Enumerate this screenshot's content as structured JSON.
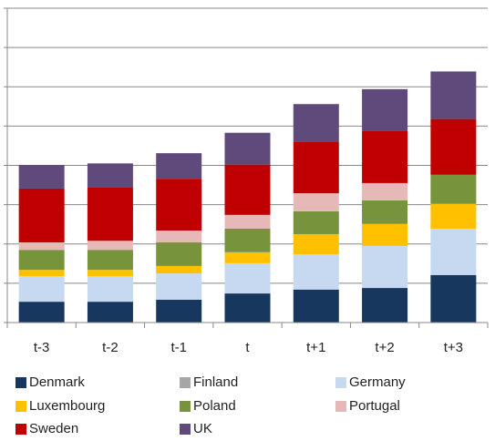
{
  "chart_data": {
    "type": "stacked_bar",
    "categories": [
      "t-3",
      "t-2",
      "t-1",
      "t",
      "t+1",
      "t+2",
      "t+3"
    ],
    "series": [
      {
        "name": "Denmark",
        "color": "#17375e",
        "values": [
          0.53,
          0.53,
          0.58,
          0.74,
          0.84,
          0.88,
          1.21
        ]
      },
      {
        "name": "Finland",
        "color": "#a6a6a6",
        "values": [
          0,
          0,
          0,
          0,
          0,
          0,
          0
        ]
      },
      {
        "name": "Germany",
        "color": "#c6d9f1",
        "values": [
          0.65,
          0.65,
          0.67,
          0.77,
          0.9,
          1.07,
          1.18
        ]
      },
      {
        "name": "Luxembourg",
        "color": "#ffc000",
        "values": [
          0.16,
          0.16,
          0.19,
          0.28,
          0.51,
          0.56,
          0.63
        ]
      },
      {
        "name": "Poland",
        "color": "#77933c",
        "values": [
          0.51,
          0.51,
          0.6,
          0.6,
          0.58,
          0.6,
          0.74
        ]
      },
      {
        "name": "Portugal",
        "color": "#e6b9b8",
        "values": [
          0.19,
          0.23,
          0.3,
          0.35,
          0.46,
          0.44,
          0
        ]
      },
      {
        "name": "Sweden",
        "color": "#c00000",
        "values": [
          1.37,
          1.37,
          1.32,
          1.28,
          1.32,
          1.32,
          1.42
        ]
      },
      {
        "name": "UK",
        "color": "#604a7b",
        "values": [
          0.6,
          0.6,
          0.65,
          0.81,
          0.95,
          1.07,
          1.21
        ]
      }
    ],
    "ylim": [
      0,
      8
    ],
    "yticks": [
      0,
      1,
      2,
      3,
      4,
      5,
      6,
      7,
      8
    ],
    "grid": true
  }
}
